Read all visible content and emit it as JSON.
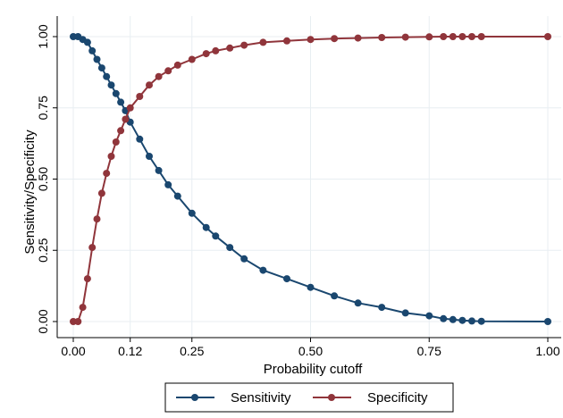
{
  "chart_data": {
    "type": "line",
    "xlabel": "Probability cutoff",
    "ylabel": "Sensitivity/Specificity",
    "xlim": [
      0,
      1
    ],
    "ylim": [
      0,
      1
    ],
    "x_ticks": [
      "0.00",
      "0.12",
      "0.25",
      "0.50",
      "0.75",
      "1.00"
    ],
    "x_tick_values": [
      0,
      0.12,
      0.25,
      0.5,
      0.75,
      1.0
    ],
    "y_ticks": [
      "0.00",
      "0.25",
      "0.50",
      "0.75",
      "1.00"
    ],
    "y_tick_values": [
      0,
      0.25,
      0.5,
      0.75,
      1.0
    ],
    "grid": true,
    "legend_position": "bottom",
    "colors": {
      "plot_background": "#ffffff",
      "page_background": "#ffffff",
      "grid": "#e8eef2"
    },
    "series": [
      {
        "name": "Sensitivity",
        "color": "#1a476f",
        "x": [
          0.0,
          0.01,
          0.02,
          0.03,
          0.04,
          0.05,
          0.06,
          0.07,
          0.08,
          0.09,
          0.1,
          0.11,
          0.12,
          0.14,
          0.16,
          0.18,
          0.2,
          0.22,
          0.25,
          0.28,
          0.3,
          0.33,
          0.36,
          0.4,
          0.45,
          0.5,
          0.55,
          0.6,
          0.65,
          0.7,
          0.75,
          0.78,
          0.8,
          0.82,
          0.84,
          0.86,
          1.0
        ],
        "values": [
          1.0,
          1.0,
          0.99,
          0.98,
          0.95,
          0.92,
          0.89,
          0.86,
          0.83,
          0.8,
          0.77,
          0.74,
          0.7,
          0.64,
          0.58,
          0.53,
          0.48,
          0.44,
          0.38,
          0.33,
          0.3,
          0.26,
          0.22,
          0.18,
          0.15,
          0.12,
          0.09,
          0.065,
          0.05,
          0.03,
          0.02,
          0.01,
          0.007,
          0.004,
          0.002,
          0.001,
          0.0
        ]
      },
      {
        "name": "Specificity",
        "color": "#90353b",
        "x": [
          0.0,
          0.01,
          0.02,
          0.03,
          0.04,
          0.05,
          0.06,
          0.07,
          0.08,
          0.09,
          0.1,
          0.11,
          0.12,
          0.14,
          0.16,
          0.18,
          0.2,
          0.22,
          0.25,
          0.28,
          0.3,
          0.33,
          0.36,
          0.4,
          0.45,
          0.5,
          0.55,
          0.6,
          0.65,
          0.7,
          0.75,
          0.78,
          0.8,
          0.82,
          0.84,
          0.86,
          1.0
        ],
        "values": [
          0.0,
          0.0,
          0.05,
          0.15,
          0.26,
          0.36,
          0.45,
          0.52,
          0.58,
          0.63,
          0.67,
          0.71,
          0.75,
          0.79,
          0.83,
          0.86,
          0.88,
          0.9,
          0.92,
          0.94,
          0.95,
          0.96,
          0.97,
          0.98,
          0.985,
          0.99,
          0.993,
          0.995,
          0.997,
          0.998,
          0.999,
          1.0,
          1.0,
          1.0,
          1.0,
          1.0,
          1.0
        ]
      }
    ]
  }
}
